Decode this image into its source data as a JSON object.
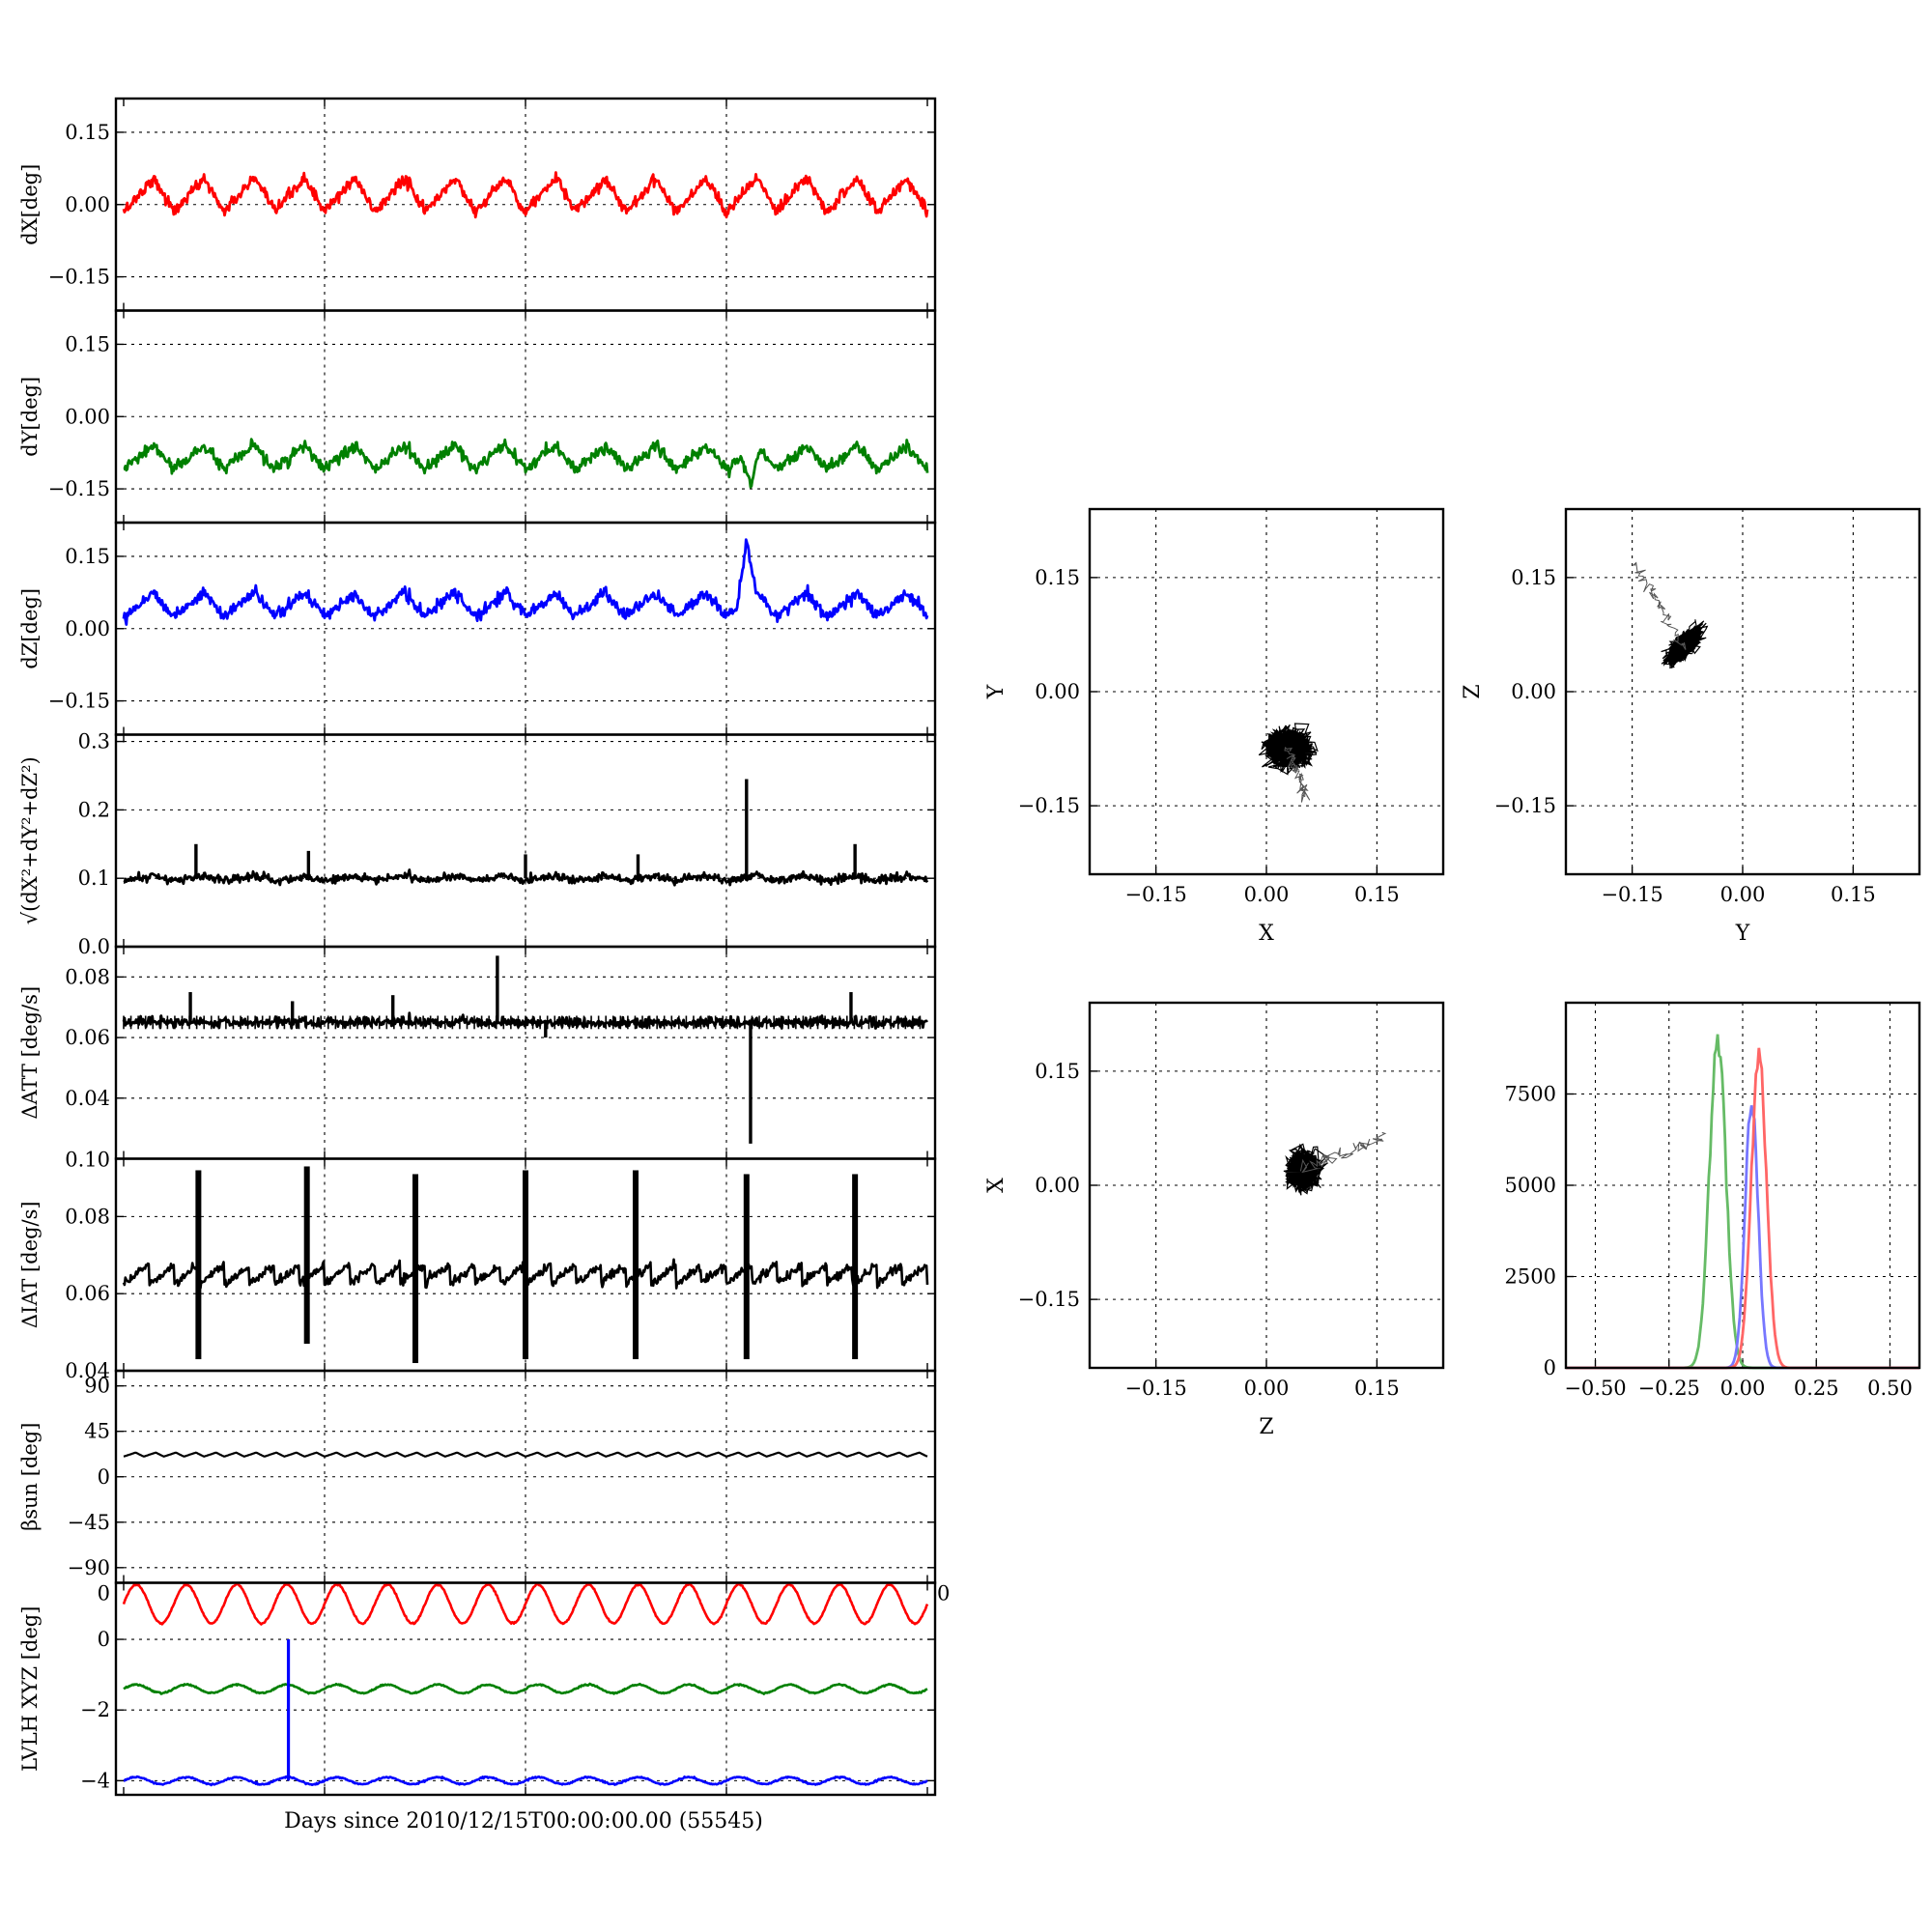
{
  "figure": {
    "x_axis_label": "Days since 2010/12/15T00:00:00.00 (55545)"
  },
  "chart_data": [
    {
      "id": "dX",
      "type": "line",
      "ylabel": "dX[deg]",
      "color": "#ff0000",
      "ylim": [
        -0.22,
        0.22
      ],
      "yticks": [
        0.15,
        0.0,
        -0.15
      ],
      "ytick_labels": [
        "0.15",
        "0.00",
        "−0.15"
      ],
      "baseline": 0.02,
      "oscillation_amplitude": 0.035,
      "oscillation_periods": 16,
      "noise": 0.006,
      "grid": true
    },
    {
      "id": "dY",
      "type": "line",
      "ylabel": "dY[deg]",
      "color": "#008000",
      "ylim": [
        -0.22,
        0.22
      ],
      "yticks": [
        0.15,
        0.0,
        -0.15
      ],
      "ytick_labels": [
        "0.15",
        "0.00",
        "−0.15"
      ],
      "baseline": -0.085,
      "oscillation_amplitude": 0.025,
      "oscillation_periods": 16,
      "noise": 0.006,
      "events": [
        {
          "x": 0.78,
          "value": -0.155
        }
      ],
      "grid": true
    },
    {
      "id": "dZ",
      "type": "line",
      "ylabel": "dZ[deg]",
      "color": "#0000ff",
      "ylim": [
        -0.22,
        0.22
      ],
      "yticks": [
        0.15,
        0.0,
        -0.15
      ],
      "ytick_labels": [
        "0.15",
        "0.00",
        "−0.15"
      ],
      "baseline": 0.05,
      "oscillation_amplitude": 0.025,
      "oscillation_periods": 16,
      "noise": 0.006,
      "events": [
        {
          "x": 0.775,
          "value": 0.175
        }
      ],
      "grid": true
    },
    {
      "id": "norm",
      "type": "line",
      "ylabel_formula": "√(dX²+dY²+dZ²)",
      "color": "#000000",
      "ylim": [
        0.0,
        0.31
      ],
      "yticks": [
        0.3,
        0.2,
        0.1,
        0.0
      ],
      "ytick_labels": [
        "0.3",
        "0.2",
        "0.1",
        "0.0"
      ],
      "baseline": 0.1,
      "oscillation_amplitude": 0.004,
      "oscillation_periods": 16,
      "noise": 0.003,
      "spikes": [
        {
          "x": 0.09,
          "value": 0.15
        },
        {
          "x": 0.23,
          "value": 0.14
        },
        {
          "x": 0.5,
          "value": 0.135
        },
        {
          "x": 0.64,
          "value": 0.135
        },
        {
          "x": 0.775,
          "value": 0.245
        },
        {
          "x": 0.91,
          "value": 0.15
        }
      ],
      "grid": true
    },
    {
      "id": "dATT",
      "type": "line",
      "ylabel": "ΔATT [deg/s]",
      "color": "#000000",
      "ylim": [
        0.02,
        0.09
      ],
      "yticks": [
        0.08,
        0.06,
        0.04
      ],
      "ytick_labels": [
        "0.08",
        "0.06",
        "0.04"
      ],
      "baseline": 0.065,
      "oscillation_amplitude": 0.0,
      "oscillation_periods": 16,
      "noise": 0.0008,
      "spikes": [
        {
          "x": 0.083,
          "value": 0.075
        },
        {
          "x": 0.21,
          "value": 0.072
        },
        {
          "x": 0.335,
          "value": 0.074
        },
        {
          "x": 0.465,
          "value": 0.087
        },
        {
          "x": 0.525,
          "value": 0.06
        },
        {
          "x": 0.78,
          "value": 0.025
        },
        {
          "x": 0.905,
          "value": 0.075
        }
      ],
      "grid": true
    },
    {
      "id": "dIAT",
      "type": "line",
      "ylabel": "ΔIAT [deg/s]",
      "color": "#000000",
      "ylim": [
        0.04,
        0.095
      ],
      "yticks": [
        0.08,
        0.06,
        0.04
      ],
      "ytick_labels": [
        "0.08",
        "0.06",
        "0.04"
      ],
      "top_tick_label": "0.10",
      "baseline": 0.065,
      "sawtooth_amplitude": 0.0025,
      "sawtooth_periods": 32,
      "noise": 0.0006,
      "bursts": [
        {
          "x": 0.093,
          "low": 0.043,
          "high": 0.092
        },
        {
          "x": 0.228,
          "low": 0.047,
          "high": 0.093
        },
        {
          "x": 0.363,
          "low": 0.042,
          "high": 0.091
        },
        {
          "x": 0.5,
          "low": 0.043,
          "high": 0.092
        },
        {
          "x": 0.637,
          "low": 0.043,
          "high": 0.092
        },
        {
          "x": 0.775,
          "low": 0.043,
          "high": 0.091
        },
        {
          "x": 0.91,
          "low": 0.043,
          "high": 0.091
        }
      ],
      "grid": true
    },
    {
      "id": "beta",
      "type": "line",
      "ylabel": "βsun [deg]",
      "color": "#000000",
      "ylim": [
        -105,
        105
      ],
      "yticks": [
        90,
        45,
        0,
        -45,
        -90
      ],
      "ytick_labels": [
        "90",
        "45",
        "0",
        "−45",
        "−90"
      ],
      "baseline": 22,
      "oscillation_amplitude": 2,
      "oscillation_periods": 40,
      "noise": 0,
      "grid": true
    },
    {
      "id": "lvlh",
      "type": "line",
      "ylabel": "LVLH XYZ [deg]",
      "color": "#000000",
      "ylim": [
        -4.4,
        1.6
      ],
      "yticks": [
        0,
        -2,
        -4
      ],
      "ytick_labels": [
        "0",
        "−2",
        "−4"
      ],
      "corner_labels": [
        "0",
        "0"
      ],
      "series": [
        {
          "color": "#ff0000",
          "baseline": 1.0,
          "amplitude": 0.55,
          "periods": 16
        },
        {
          "color": "#008000",
          "baseline": -1.4,
          "amplitude": 0.12,
          "periods": 16
        },
        {
          "color": "#0000ff",
          "baseline": -4.0,
          "amplitude": 0.1,
          "periods": 16
        }
      ],
      "events": [
        {
          "x": 0.205,
          "low": -4.0,
          "high": 0.0,
          "color": "#0000ff"
        }
      ],
      "grid": true
    },
    {
      "id": "scatter-xy",
      "type": "scatter",
      "xlabel": "X",
      "ylabel": "Y",
      "color": "#000000",
      "xlim": [
        -0.24,
        0.24
      ],
      "ylim": [
        -0.24,
        0.24
      ],
      "xticks": [
        -0.15,
        0.0,
        0.15
      ],
      "yticks": [
        0.15,
        0.0,
        -0.15
      ],
      "xtick_labels": [
        "−0.15",
        "0.00",
        "0.15"
      ],
      "ytick_labels": [
        "0.15",
        "0.00",
        "−0.15"
      ],
      "center": [
        0.03,
        -0.075
      ],
      "spread": [
        0.025,
        0.02
      ],
      "tail": {
        "to": [
          0.055,
          -0.14
        ]
      },
      "grid": true
    },
    {
      "id": "scatter-yz",
      "type": "scatter",
      "xlabel": "Y",
      "ylabel": "Z",
      "color": "#000000",
      "xlim": [
        -0.24,
        0.24
      ],
      "ylim": [
        -0.24,
        0.24
      ],
      "xticks": [
        -0.15,
        0.0,
        0.15
      ],
      "yticks": [
        0.15,
        0.0,
        -0.15
      ],
      "xtick_labels": [
        "−0.15",
        "0.00",
        "0.15"
      ],
      "ytick_labels": [
        "0.15",
        "0.00",
        "−0.15"
      ],
      "center": [
        -0.08,
        0.06
      ],
      "spread": [
        0.018,
        0.018
      ],
      "correlation": 0.7,
      "tail": {
        "to": [
          -0.148,
          0.168
        ]
      },
      "grid": true
    },
    {
      "id": "scatter-zx",
      "type": "scatter",
      "xlabel": "Z",
      "ylabel": "X",
      "color": "#000000",
      "xlim": [
        -0.24,
        0.24
      ],
      "ylim": [
        -0.24,
        0.24
      ],
      "xticks": [
        -0.15,
        0.0,
        0.15
      ],
      "yticks": [
        0.15,
        0.0,
        -0.15
      ],
      "xtick_labels": [
        "−0.15",
        "0.00",
        "0.15"
      ],
      "ytick_labels": [
        "0.15",
        "0.00",
        "−0.15"
      ],
      "center": [
        0.05,
        0.02
      ],
      "spread": [
        0.018,
        0.02
      ],
      "tail": {
        "to": [
          0.16,
          0.065
        ]
      },
      "grid": true
    },
    {
      "id": "histogram",
      "type": "line",
      "xlabel": "",
      "ylabel": "",
      "xlim": [
        -0.6,
        0.6
      ],
      "ylim": [
        0,
        10000
      ],
      "xticks": [
        -0.5,
        -0.25,
        0.0,
        0.25,
        0.5
      ],
      "xtick_labels": [
        "−0.50",
        "−0.25",
        "0.00",
        "0.25",
        "0.50"
      ],
      "yticks": [
        0,
        2500,
        5000,
        7500
      ],
      "ytick_labels": [
        "0",
        "2500",
        "5000",
        "7500"
      ],
      "series": [
        {
          "color": "#66bb66",
          "center": -0.085,
          "peak": 9400,
          "width": 0.028
        },
        {
          "color": "#7777ff",
          "center": 0.03,
          "peak": 7600,
          "width": 0.022
        },
        {
          "color": "#ff6666",
          "center": 0.055,
          "peak": 8900,
          "width": 0.026
        }
      ],
      "grid": true
    }
  ]
}
